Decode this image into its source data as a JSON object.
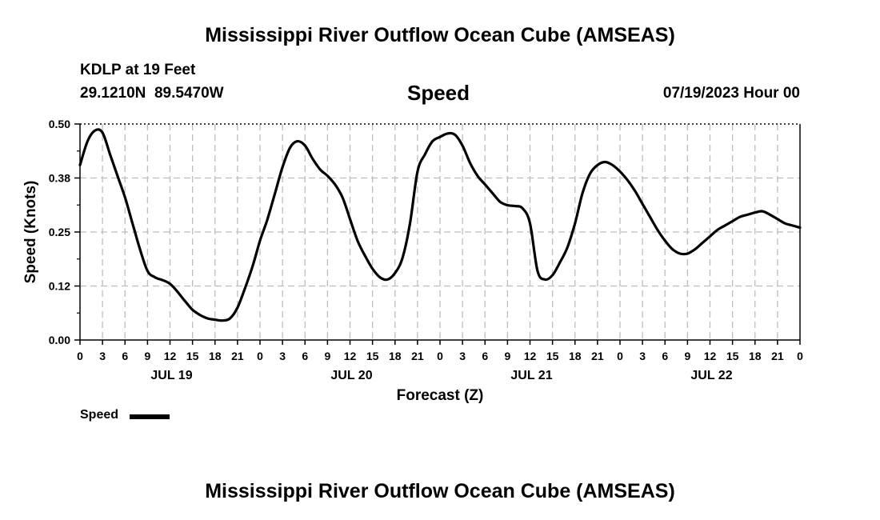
{
  "header": {
    "title": "Mississippi River Outflow Ocean Cube (AMSEAS)",
    "station": "KDLP at 19 Feet",
    "coords": "29.1210N  89.5470W",
    "variable": "Speed",
    "datetime": "07/19/2023 Hour 00"
  },
  "footer": {
    "title": "Mississippi River Outflow Ocean Cube (AMSEAS)"
  },
  "legend": {
    "label": "Speed"
  },
  "chart_data": {
    "type": "line",
    "title": "Speed",
    "xlabel": "Forecast (Z)",
    "ylabel": "Speed (Knots)",
    "ylim": [
      0,
      0.5
    ],
    "xlim": [
      0,
      96
    ],
    "grid": true,
    "legend_position": "bottom-left",
    "y_ticks": [
      {
        "value": 0.0,
        "label": "0.00"
      },
      {
        "value": 0.125,
        "label": "0.12"
      },
      {
        "value": 0.25,
        "label": "0.25"
      },
      {
        "value": 0.375,
        "label": "0.38"
      },
      {
        "value": 0.5,
        "label": "0.50"
      }
    ],
    "x_tick_labels": [
      "0",
      "3",
      "6",
      "9",
      "12",
      "15",
      "18",
      "21",
      "0",
      "3",
      "6",
      "9",
      "12",
      "15",
      "18",
      "21",
      "0",
      "3",
      "6",
      "9",
      "12",
      "15",
      "18",
      "21",
      "0",
      "3",
      "6",
      "9",
      "12",
      "15",
      "18",
      "21",
      "0"
    ],
    "day_labels": [
      {
        "hour": 12,
        "label": "JUL 19"
      },
      {
        "hour": 36,
        "label": "JUL 20"
      },
      {
        "hour": 60,
        "label": "JUL 21"
      },
      {
        "hour": 84,
        "label": "JUL 22"
      }
    ],
    "series": [
      {
        "name": "Speed",
        "color": "#000000",
        "x": [
          0,
          1,
          2,
          3,
          4,
          5,
          6,
          7,
          8,
          9,
          10,
          12,
          14,
          15,
          16,
          17,
          18,
          19,
          20,
          21,
          22,
          23,
          24,
          25,
          26,
          27,
          28,
          29,
          30,
          31,
          32,
          33,
          34,
          35,
          36,
          37,
          38,
          39,
          40,
          41,
          42,
          43,
          44,
          45,
          46,
          47,
          48,
          49,
          50,
          51,
          52,
          53,
          54,
          55,
          56,
          57,
          58,
          59,
          60,
          61,
          62,
          63,
          64,
          65,
          66,
          67,
          68,
          69,
          70,
          71,
          72,
          73,
          74,
          75,
          76,
          77,
          78,
          79,
          80,
          81,
          82,
          83,
          84,
          85,
          86,
          87,
          88,
          89,
          90,
          91,
          92,
          93,
          94,
          95,
          96
        ],
        "values": [
          0.405,
          0.46,
          0.485,
          0.48,
          0.43,
          0.38,
          0.33,
          0.27,
          0.21,
          0.16,
          0.145,
          0.13,
          0.09,
          0.07,
          0.058,
          0.05,
          0.047,
          0.045,
          0.05,
          0.075,
          0.12,
          0.17,
          0.23,
          0.28,
          0.34,
          0.4,
          0.445,
          0.46,
          0.45,
          0.42,
          0.395,
          0.38,
          0.36,
          0.33,
          0.28,
          0.23,
          0.195,
          0.165,
          0.145,
          0.14,
          0.155,
          0.19,
          0.27,
          0.39,
          0.43,
          0.46,
          0.47,
          0.478,
          0.475,
          0.45,
          0.41,
          0.38,
          0.36,
          0.34,
          0.32,
          0.312,
          0.31,
          0.305,
          0.27,
          0.16,
          0.14,
          0.15,
          0.18,
          0.215,
          0.27,
          0.34,
          0.385,
          0.405,
          0.412,
          0.405,
          0.39,
          0.37,
          0.345,
          0.315,
          0.285,
          0.255,
          0.23,
          0.21,
          0.2,
          0.2,
          0.21,
          0.225,
          0.24,
          0.255,
          0.265,
          0.275,
          0.285,
          0.29,
          0.295,
          0.298,
          0.29,
          0.28,
          0.27,
          0.265,
          0.26
        ]
      }
    ]
  }
}
